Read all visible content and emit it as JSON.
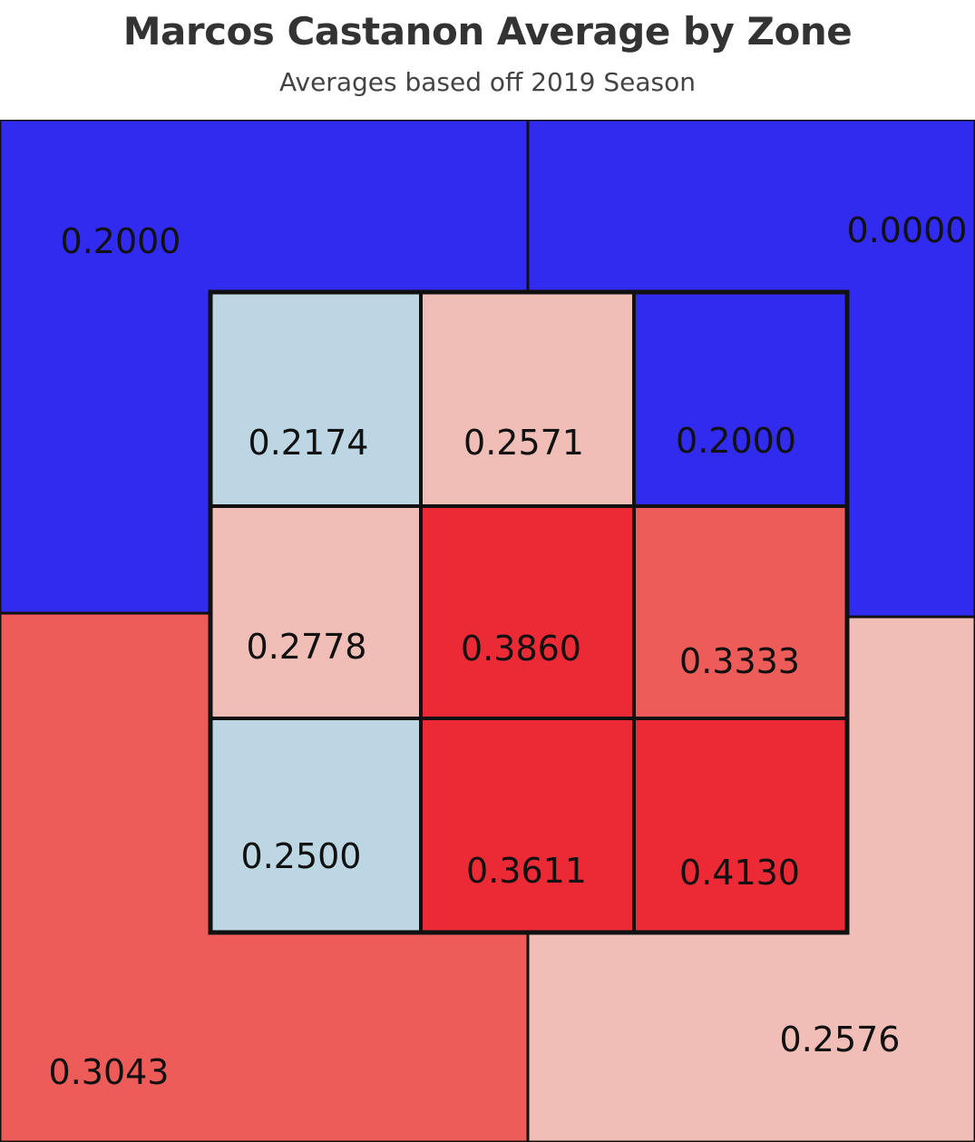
{
  "chart_data": {
    "type": "heatmap",
    "title": "Marcos Castanon Average by Zone",
    "subtitle": "Averages based off 2019 Season",
    "inner_zones": [
      {
        "row": 1,
        "col": 1,
        "value": "0.2174",
        "color": "#bcd6e4"
      },
      {
        "row": 1,
        "col": 2,
        "value": "0.2571",
        "color": "#f0beb6"
      },
      {
        "row": 1,
        "col": 3,
        "value": "0.2000",
        "color": "#312bf0"
      },
      {
        "row": 2,
        "col": 1,
        "value": "0.2778",
        "color": "#f0beb6"
      },
      {
        "row": 2,
        "col": 2,
        "value": "0.3860",
        "color": "#ec2a36"
      },
      {
        "row": 2,
        "col": 3,
        "value": "0.3333",
        "color": "#ee5c5a"
      },
      {
        "row": 3,
        "col": 1,
        "value": "0.2500",
        "color": "#bcd6e4"
      },
      {
        "row": 3,
        "col": 2,
        "value": "0.3611",
        "color": "#ec2a36"
      },
      {
        "row": 3,
        "col": 3,
        "value": "0.4130",
        "color": "#ec2a36"
      }
    ],
    "outer_zones": [
      {
        "position": "top-left",
        "value": "0.2000",
        "color": "#312bf0"
      },
      {
        "position": "top-right",
        "value": "0.0000",
        "color": "#312bf0"
      },
      {
        "position": "bottom-left",
        "value": "0.3043",
        "color": "#ee5c5a"
      },
      {
        "position": "bottom-right",
        "value": "0.2576",
        "color": "#f0beb6"
      }
    ]
  }
}
